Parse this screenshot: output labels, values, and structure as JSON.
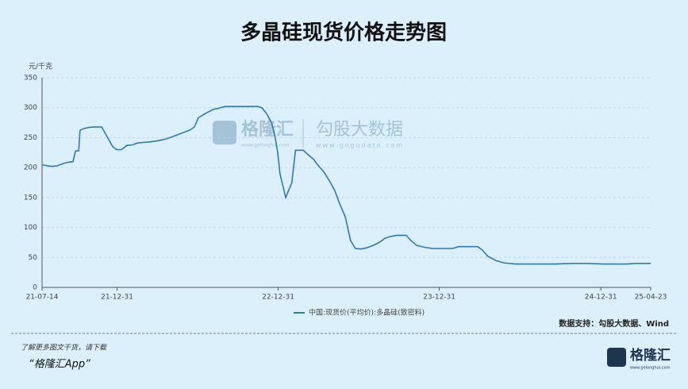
{
  "chart_data": {
    "type": "line",
    "title": "多晶硅现货价格走势图",
    "y_axis_label": "元/千克",
    "x": [
      "21-07-14",
      "21-07-27",
      "21-08-05",
      "21-08-17",
      "21-09-01",
      "21-09-10",
      "21-09-22",
      "21-09-28",
      "21-10-05",
      "21-10-08",
      "21-10-15",
      "21-10-28",
      "21-11-08",
      "21-11-26",
      "21-12-08",
      "21-12-21",
      "21-12-30",
      "22-01-10",
      "22-01-22",
      "22-02-04",
      "22-02-15",
      "22-02-27",
      "22-03-17",
      "22-04-04",
      "22-04-22",
      "22-05-10",
      "22-05-28",
      "22-06-15",
      "22-06-24",
      "22-07-03",
      "22-07-18",
      "22-08-05",
      "22-08-17",
      "22-09-01",
      "22-09-22",
      "22-10-19",
      "22-11-15",
      "22-11-24",
      "22-12-05",
      "22-12-16",
      "22-12-23",
      "22-12-30",
      "23-01-04",
      "23-01-17",
      "23-01-31",
      "23-02-08",
      "23-02-26",
      "23-03-08",
      "23-03-21",
      "23-03-30",
      "23-04-13",
      "23-04-26",
      "23-05-08",
      "23-05-19",
      "23-06-01",
      "23-06-13",
      "23-06-24",
      "23-07-07",
      "23-07-19",
      "23-08-03",
      "23-08-17",
      "23-08-30",
      "23-09-11",
      "23-09-26",
      "23-10-17",
      "23-10-28",
      "23-11-10",
      "23-11-28",
      "23-12-16",
      "24-01-12",
      "24-01-30",
      "24-02-13",
      "24-03-06",
      "24-03-27",
      "24-04-07",
      "24-04-19",
      "24-05-07",
      "24-05-25",
      "24-06-21",
      "24-08-14",
      "24-09-19",
      "24-10-25",
      "24-11-30",
      "25-01-05",
      "25-02-28",
      "25-03-18",
      "25-04-23"
    ],
    "series": [
      {
        "name": "中国:现货价(平均价):多晶硅(致密料)",
        "color": "#2b7bb0",
        "values": [
          205,
          203,
          202,
          203,
          207,
          209,
          210,
          228,
          228,
          262,
          265,
          267,
          268,
          268,
          252,
          235,
          230,
          230,
          237,
          238,
          241,
          242,
          243,
          245,
          248,
          253,
          258,
          263,
          268,
          283,
          290,
          297,
          299,
          302,
          302,
          302,
          302,
          300,
          290,
          275,
          255,
          225,
          190,
          150,
          175,
          229,
          229,
          222,
          214,
          205,
          193,
          178,
          162,
          140,
          118,
          78,
          65,
          64,
          66,
          70,
          75,
          82,
          85,
          87,
          87,
          78,
          70,
          67,
          65,
          65,
          65,
          68,
          68,
          68,
          62,
          52,
          45,
          41,
          39,
          39,
          39,
          40,
          40,
          39,
          39,
          40,
          40
        ]
      }
    ],
    "xlim": [
      "21-07-14",
      "25-04-23"
    ],
    "xticks": [
      "21-07-14",
      "21-12-31",
      "22-12-31",
      "23-12-31",
      "24-12-31",
      "25-04-23"
    ],
    "ylim": [
      0,
      350
    ],
    "yticks": [
      0,
      50,
      100,
      150,
      200,
      250,
      300,
      350
    ],
    "grid": true,
    "source": "数据支持：勾股大数据、Wind"
  },
  "watermark": {
    "brand": "格隆汇",
    "brand_url": "www.gelonghui.com",
    "partner": "勾股大数据",
    "partner_url": "www.gogudata.com"
  },
  "footer": {
    "note": "了解更多图文干货，请下载",
    "app": "“格隆汇App”",
    "logo": "格隆汇",
    "logo_url": "www.gelonghui.com"
  }
}
